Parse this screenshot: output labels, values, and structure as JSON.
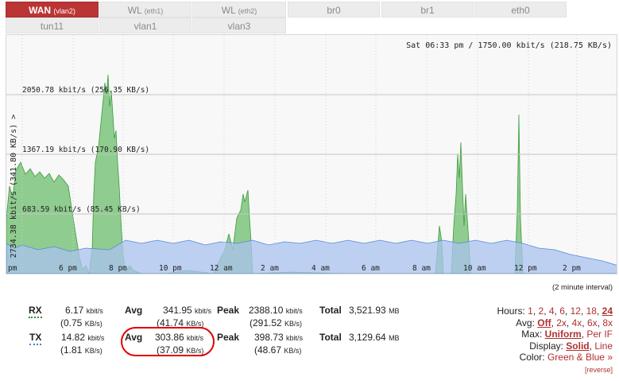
{
  "tabs": [
    {
      "label": "WAN",
      "sub": "(vlan2)",
      "active": true
    },
    {
      "label": "WL",
      "sub": "(eth1)"
    },
    {
      "label": "WL",
      "sub": "(eth2)"
    },
    {
      "label": "br0",
      "sub": ""
    },
    {
      "label": "br1",
      "sub": ""
    },
    {
      "label": "eth0",
      "sub": ""
    },
    {
      "label": "tun11",
      "sub": ""
    },
    {
      "label": "vlan1",
      "sub": ""
    },
    {
      "label": "vlan3",
      "sub": ""
    }
  ],
  "graph": {
    "status": "Sat 06:33 pm / 1750.00 kbit/s (218.75 KB/s)",
    "y_axis_label": "2734.38 kbit/s (341.80 KB/s) >",
    "gridlines": [
      {
        "label": "2050.78 kbit/s (256.35 KB/s)",
        "value": 2050.78
      },
      {
        "label": "1367.19 kbit/s (170.90 KB/s)",
        "value": 1367.19
      },
      {
        "label": "683.59 kbit/s (85.45 KB/s)",
        "value": 683.59
      }
    ],
    "time_labels": [
      "pm",
      "6 pm",
      "8 pm",
      "10 pm",
      "12 am",
      "2 am",
      "4 am",
      "6 am",
      "8 am",
      "10 am",
      "12 pm",
      "2 pm"
    ],
    "colors": {
      "rx": "#3e9a3e",
      "rx_fill": "#7cc47c",
      "tx": "#5a86d8",
      "tx_fill": "#a9c3ef"
    }
  },
  "interval": "(2 minute interval)",
  "stats": {
    "rx": {
      "label": "RX",
      "cur": "6.17",
      "cur_unit": "kbit/s",
      "cur2": "(0.75",
      "cur2_unit": "KB/s)",
      "avg_label": "Avg",
      "avg": "341.95",
      "avg_unit": "kbit/s",
      "avg2": "(41.74",
      "avg2_unit": "KB/s)",
      "peak_label": "Peak",
      "peak": "2388.10",
      "peak_unit": "kbit/s",
      "peak2": "(291.52",
      "peak2_unit": "KB/s)",
      "total_label": "Total",
      "total": "3,521.93",
      "total_unit": "MB"
    },
    "tx": {
      "label": "TX",
      "cur": "14.82",
      "cur_unit": "kbit/s",
      "cur2": "(1.81",
      "cur2_unit": "KB/s)",
      "avg_label": "Avg",
      "avg": "303.86",
      "avg_unit": "kbit/s",
      "avg2": "(37.09",
      "avg2_unit": "KB/s)",
      "peak_label": "Peak",
      "peak": "398.73",
      "peak_unit": "kbit/s",
      "peak2": "(48.67",
      "peak2_unit": "KB/s)",
      "total_label": "Total",
      "total": "3,129.64",
      "total_unit": "MB"
    }
  },
  "options": {
    "hours_label": "Hours:",
    "hours": [
      "1",
      "2",
      "4",
      "6",
      "12",
      "18",
      "24"
    ],
    "hours_selected": "24",
    "avg_label": "Avg:",
    "avg": [
      "Off",
      "2x",
      "4x",
      "6x",
      "8x"
    ],
    "avg_selected": "Off",
    "max_label": "Max:",
    "max": [
      "Uniform",
      "Per IF"
    ],
    "max_selected": "Uniform",
    "display_label": "Display:",
    "display": [
      "Solid",
      "Line"
    ],
    "display_selected": "Solid",
    "color_label": "Color:",
    "color_value": "Green & Blue »",
    "reverse": "[reverse]"
  }
}
